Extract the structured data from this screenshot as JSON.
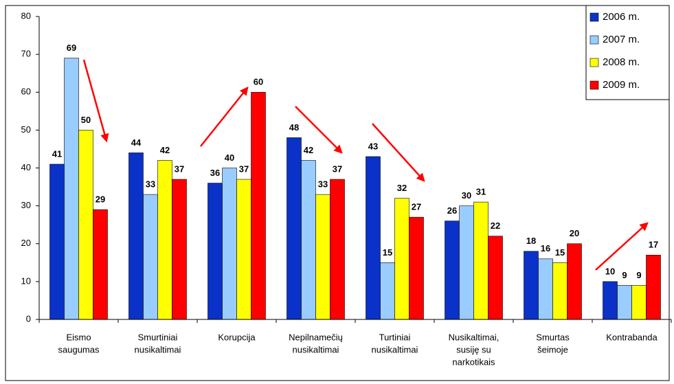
{
  "chart_data": {
    "type": "bar",
    "categories": [
      [
        "Eismo",
        "saugumas"
      ],
      [
        "Smurtiniai",
        "nusikaltimai"
      ],
      [
        "Korupcija"
      ],
      [
        "Nepilnamečių",
        "nusikaltimai"
      ],
      [
        "Turtiniai",
        "nusikaltimai"
      ],
      [
        "Nusikaltimai,",
        "susiję su",
        "narkotikais"
      ],
      [
        "Smurtas",
        "šeimoje"
      ],
      [
        "Kontrabanda"
      ]
    ],
    "series": [
      {
        "name": "2006 m.",
        "color": "#0a32c8",
        "values": [
          41,
          44,
          36,
          48,
          43,
          26,
          18,
          10
        ]
      },
      {
        "name": "2007 m.",
        "color": "#99ccff",
        "values": [
          69,
          33,
          40,
          42,
          15,
          30,
          16,
          9
        ]
      },
      {
        "name": "2008 m.",
        "color": "#ffff00",
        "values": [
          50,
          42,
          37,
          33,
          32,
          31,
          15,
          9
        ]
      },
      {
        "name": "2009 m.",
        "color": "#ff0000",
        "values": [
          29,
          37,
          60,
          37,
          27,
          22,
          20,
          17
        ]
      }
    ],
    "ylim": [
      0,
      80
    ],
    "yticks": [
      0,
      10,
      20,
      30,
      40,
      50,
      60,
      70,
      80
    ],
    "legend": "top-right",
    "grid": false
  }
}
